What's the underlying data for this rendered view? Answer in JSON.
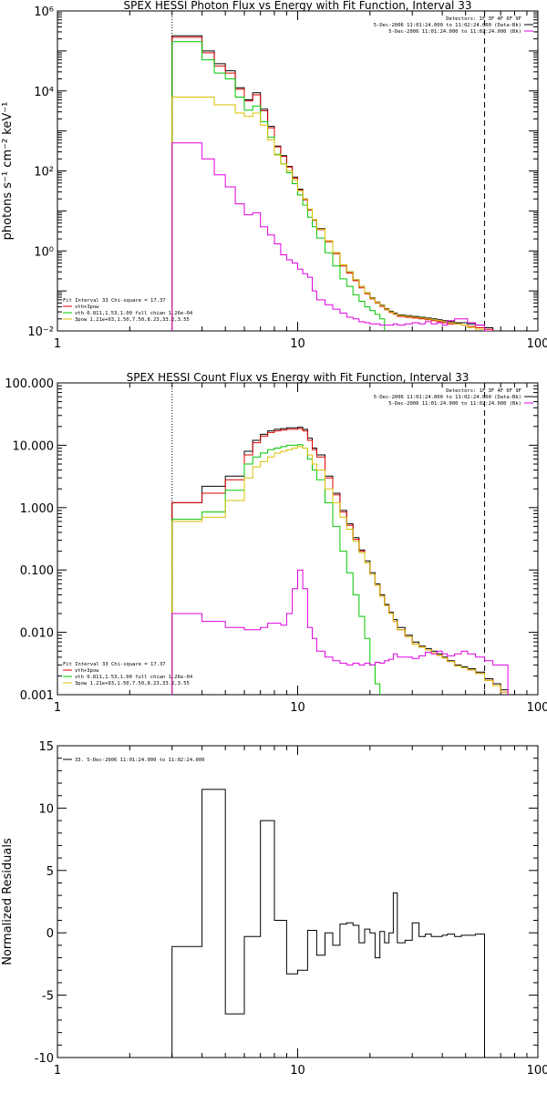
{
  "chart_data": [
    {
      "type": "line",
      "step": true,
      "title": "SPEX HESSI Photon Flux vs Energy with Fit Function, Interval 33",
      "xlabel": "",
      "ylabel": "photons s⁻¹ cm⁻² keV⁻¹",
      "xscale": "log",
      "yscale": "log",
      "xlim": [
        1,
        100
      ],
      "ylim": [
        0.01,
        1000000
      ],
      "xticks": [
        1,
        10,
        100
      ],
      "xtick_labels": [
        "1",
        "10",
        "100"
      ],
      "yticks": [
        0.01,
        1,
        100,
        10000,
        1000000
      ],
      "ytick_labels": [
        "10⁻²",
        "10⁰",
        "10²",
        "10⁴",
        "10⁶"
      ],
      "vlines": [
        {
          "x": 3,
          "style": "dotted"
        },
        {
          "x": 60,
          "style": "dashed"
        }
      ],
      "header_right": [
        "Detectors: 1F 3F 4F 6F 9F",
        "5-Dec-2006 11:01:24.000 to 11:02:24.000 (Data-Bk)",
        "5-Dec-2006 11:01:24.000 to 11:02:24.000 (Bk)"
      ],
      "legend_left": [
        "Fit Interval 33   Chi-square = 17.37",
        "vth+3pow",
        "vth 0.811,1.53,1.00  full chian 1.26e-04",
        "3pow 1.21e+03,1.50,7.50,8.23,33.2,3.55"
      ],
      "x_edges": [
        3,
        3.5,
        4,
        4.5,
        5,
        5.5,
        6,
        6.5,
        7,
        7.5,
        8,
        8.5,
        9,
        9.5,
        10,
        10.5,
        11,
        11.5,
        12,
        13,
        14,
        15,
        16,
        17,
        18,
        19,
        20,
        21,
        22,
        23,
        24,
        25,
        26,
        28,
        30,
        32,
        34,
        36,
        38,
        40,
        42,
        45,
        48,
        51,
        55,
        60,
        65
      ],
      "series": [
        {
          "color": "#000000",
          "values": [
            240000,
            240000,
            100000,
            48000,
            32000,
            12000,
            6000,
            9000,
            3500,
            1300,
            420,
            240,
            130,
            70,
            35,
            20,
            11,
            6,
            3.6,
            1.8,
            0.9,
            0.45,
            0.3,
            0.19,
            0.13,
            0.09,
            0.067,
            0.053,
            0.044,
            0.036,
            0.031,
            0.028,
            0.025,
            0.024,
            0.023,
            0.022,
            0.021,
            0.02,
            0.019,
            0.018,
            0.017,
            0.016,
            0.016,
            0.015,
            0.014,
            0.012
          ]
        },
        {
          "color": "#e00000",
          "values": [
            220000,
            220000,
            90000,
            42000,
            28000,
            11000,
            5600,
            8000,
            3200,
            1200,
            400,
            230,
            125,
            66,
            33,
            19,
            10.5,
            5.8,
            3.4,
            1.7,
            0.85,
            0.42,
            0.28,
            0.18,
            0.12,
            0.085,
            0.063,
            0.05,
            0.041,
            0.034,
            0.029,
            0.026,
            0.023,
            0.022,
            0.021,
            0.02,
            0.019,
            0.018,
            0.017,
            0.016,
            0.015,
            0.015,
            0.014,
            0.013,
            0.012,
            0.011
          ]
        },
        {
          "color": "#00c800",
          "values": [
            170000,
            170000,
            60000,
            28000,
            20000,
            7000,
            3300,
            4200,
            1700,
            700,
            260,
            150,
            90,
            48,
            25,
            14,
            7,
            4,
            2.1,
            0.9,
            0.42,
            0.2,
            0.13,
            0.08,
            0.055,
            0.04,
            0.032,
            0.026,
            0.02,
            0.008,
            0.006,
            0.005,
            0.005,
            0.005,
            0.005,
            0.005,
            0.005,
            0.005,
            0.005,
            0.005,
            0.005,
            0.005,
            0.005,
            0.005,
            0.005,
            0.005
          ]
        },
        {
          "color": "#d8c000",
          "values": [
            7000,
            7000,
            7000,
            4500,
            4500,
            2800,
            2300,
            2800,
            1400,
            600,
            250,
            150,
            100,
            60,
            32,
            20,
            11,
            6,
            3.5,
            1.8,
            0.9,
            0.45,
            0.3,
            0.19,
            0.13,
            0.09,
            0.065,
            0.052,
            0.043,
            0.035,
            0.03,
            0.027,
            0.024,
            0.023,
            0.022,
            0.021,
            0.02,
            0.019,
            0.018,
            0.017,
            0.016,
            0.015,
            0.014,
            0.012,
            0.011,
            0.008
          ]
        },
        {
          "color": "#e000e0",
          "values": [
            500,
            500,
            200,
            80,
            40,
            15,
            8,
            9,
            4,
            2.5,
            1.5,
            0.8,
            0.6,
            0.5,
            0.35,
            0.27,
            0.22,
            0.1,
            0.06,
            0.045,
            0.035,
            0.028,
            0.022,
            0.02,
            0.017,
            0.016,
            0.015,
            0.015,
            0.014,
            0.014,
            0.014,
            0.015,
            0.014,
            0.015,
            0.016,
            0.015,
            0.017,
            0.015,
            0.016,
            0.014,
            0.018,
            0.02,
            0.02,
            0.016,
            0.014,
            0.01
          ]
        }
      ]
    },
    {
      "type": "line",
      "step": true,
      "title": "SPEX HESSI Count Flux vs Energy with Fit Function, Interval 33",
      "xlabel": "",
      "ylabel": "",
      "xscale": "log",
      "yscale": "log",
      "xlim": [
        1,
        100
      ],
      "ylim": [
        0.001,
        100
      ],
      "xticks": [
        1,
        10,
        100
      ],
      "xtick_labels": [
        "1",
        "10",
        "100"
      ],
      "yticks": [
        0.001,
        0.01,
        0.1,
        1,
        10,
        100
      ],
      "ytick_labels": [
        "0.001",
        "0.010",
        "0.100",
        "1.000",
        "10.000",
        "100.000"
      ],
      "vlines": [
        {
          "x": 3,
          "style": "dotted"
        },
        {
          "x": 60,
          "style": "dashed"
        }
      ],
      "header_right": [
        "Detectors: 1F 3F 4F 6F 9F",
        "5-Dec-2006 11:01:24.000 to 11:02:24.000 (Data-Bk)",
        "5-Dec-2006 11:01:24.000 to 11:02:24.000 (Bk)"
      ],
      "legend_left": [
        "Fit Interval 33   Chi-square = 17.37",
        "vth+3pow",
        "vth 0.811,1.53,1.00  full chian 1.26e-04",
        "3pow 1.21e+03,1.50,7.50,8.23,33.2,3.55"
      ],
      "x_edges": [
        3,
        4,
        5,
        6,
        6.5,
        7,
        7.5,
        8,
        8.5,
        9,
        9.5,
        10,
        10.5,
        11,
        11.5,
        12,
        13,
        14,
        15,
        16,
        17,
        18,
        19,
        20,
        21,
        22,
        23,
        24,
        25,
        26,
        28,
        30,
        32,
        34,
        36,
        38,
        40,
        42,
        45,
        48,
        51,
        55,
        60,
        65,
        70,
        75
      ],
      "series": [
        {
          "color": "#000000",
          "values": [
            1.2,
            2.2,
            3.2,
            8,
            12,
            15,
            17,
            18,
            18.5,
            19,
            19,
            19.5,
            18,
            13,
            9,
            7,
            3.2,
            1.7,
            0.9,
            0.55,
            0.33,
            0.21,
            0.14,
            0.09,
            0.06,
            0.04,
            0.028,
            0.021,
            0.016,
            0.012,
            0.009,
            0.007,
            0.006,
            0.0055,
            0.005,
            0.0045,
            0.004,
            0.0035,
            0.003,
            0.0028,
            0.0026,
            0.0023,
            0.0018,
            0.0015,
            0.0012
          ]
        },
        {
          "color": "#e00000",
          "values": [
            1.2,
            1.7,
            2.8,
            7,
            11,
            14,
            16,
            17,
            17.5,
            18,
            18,
            18.5,
            17,
            12,
            8.5,
            6.5,
            3,
            1.6,
            0.85,
            0.52,
            0.31,
            0.2,
            0.13,
            0.085,
            0.057,
            0.038,
            0.027,
            0.02,
            0.015,
            0.011,
            0.0085,
            0.0065,
            0.0058,
            0.0052,
            0.0047,
            0.0043,
            0.0039,
            0.0034,
            0.0029,
            0.0027,
            0.0025,
            0.0022,
            0.0017,
            0.0014,
            0.0011
          ]
        },
        {
          "color": "#00c800",
          "values": [
            0.65,
            0.85,
            1.9,
            5,
            6.5,
            7.5,
            8.5,
            9,
            9.5,
            10,
            10,
            10.2,
            9,
            6,
            4,
            2.8,
            1.2,
            0.5,
            0.2,
            0.09,
            0.04,
            0.018,
            0.008,
            0.003,
            0.0015,
            0.0009,
            0.0009,
            0.0009,
            0.0009,
            0.0009,
            0.0009,
            0.0009,
            0.0009,
            0.0009,
            0.0009,
            0.0009,
            0.0009,
            0.0009,
            0.0009,
            0.0009,
            0.0009,
            0.0009,
            0.0009,
            0.0009,
            0.0009
          ]
        },
        {
          "color": "#d8c000",
          "values": [
            0.6,
            0.7,
            1.3,
            3,
            4.5,
            5.5,
            6.5,
            7.5,
            8,
            8.5,
            9,
            9.5,
            9,
            7,
            5,
            4,
            2,
            1.2,
            0.7,
            0.45,
            0.29,
            0.19,
            0.13,
            0.085,
            0.057,
            0.038,
            0.027,
            0.02,
            0.015,
            0.011,
            0.0085,
            0.0065,
            0.0058,
            0.0052,
            0.0047,
            0.0043,
            0.0039,
            0.0034,
            0.0029,
            0.0027,
            0.0025,
            0.0022,
            0.0017,
            0.0014,
            0.0011
          ]
        },
        {
          "color": "#e000e0",
          "values": [
            0.02,
            0.015,
            0.012,
            0.011,
            0.011,
            0.012,
            0.014,
            0.014,
            0.013,
            0.02,
            0.05,
            0.1,
            0.05,
            0.012,
            0.008,
            0.005,
            0.004,
            0.0035,
            0.0032,
            0.003,
            0.0032,
            0.003,
            0.0032,
            0.003,
            0.0033,
            0.0032,
            0.0035,
            0.0037,
            0.0045,
            0.004,
            0.004,
            0.0038,
            0.0042,
            0.0048,
            0.0045,
            0.005,
            0.0045,
            0.0042,
            0.0045,
            0.005,
            0.0045,
            0.004,
            0.0035,
            0.003,
            0.003
          ]
        }
      ]
    },
    {
      "type": "line",
      "step": true,
      "title": "",
      "xlabel": "",
      "ylabel": "Normalized Residuals",
      "xscale": "log",
      "yscale": "linear",
      "xlim": [
        1,
        100
      ],
      "ylim": [
        -10,
        15
      ],
      "xticks": [
        1,
        10,
        100
      ],
      "xtick_labels": [
        "1",
        "10",
        "100"
      ],
      "yticks": [
        -10,
        -5,
        0,
        5,
        10,
        15
      ],
      "ytick_labels": [
        "-10",
        "-5",
        "0",
        "5",
        "10",
        "15"
      ],
      "legend_left": [
        "33.  5-Dec-2006 11:01:24.000 to 11:02:24.000"
      ],
      "x_edges": [
        3,
        4,
        5,
        6,
        7,
        8,
        9,
        10,
        11,
        12,
        13,
        14,
        15,
        16,
        17,
        18,
        19,
        20,
        21,
        22,
        23,
        24,
        25,
        26,
        28,
        30,
        32,
        34,
        36,
        38,
        40,
        42,
        45,
        48,
        51,
        55,
        60
      ],
      "series": [
        {
          "color": "#000000",
          "values": [
            -1.1,
            11.5,
            -6.5,
            -0.3,
            9,
            1,
            -3.3,
            -3,
            0.2,
            -1.8,
            0,
            -1,
            0.7,
            0.8,
            0.6,
            -0.8,
            0.3,
            0,
            -2,
            0.1,
            -0.8,
            0,
            3.2,
            -0.8,
            -0.6,
            0.8,
            -0.3,
            -0.1,
            -0.3,
            -0.3,
            -0.2,
            -0.1,
            -0.3,
            -0.2,
            -0.2,
            -0.1
          ]
        }
      ]
    }
  ]
}
